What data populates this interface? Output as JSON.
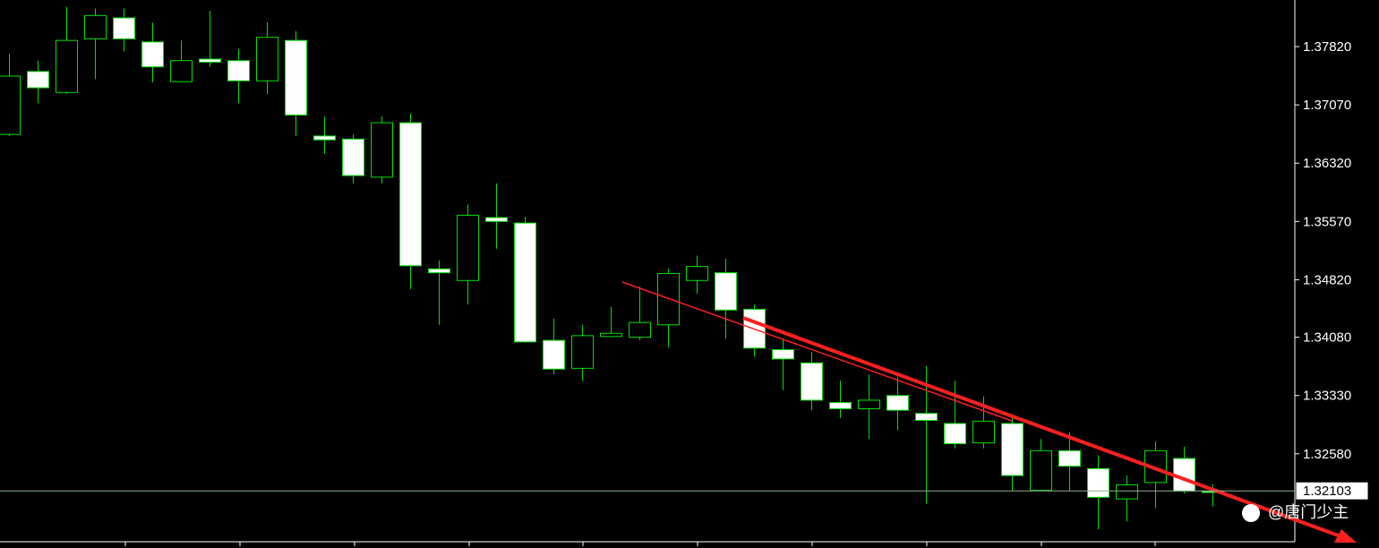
{
  "chart_data": {
    "type": "candlestick",
    "open": [
      1.3669,
      1.375,
      1.3723,
      1.3792,
      1.3819,
      1.3788,
      1.3737,
      1.3766,
      1.3764,
      1.3738,
      1.379,
      1.3667,
      1.3663,
      1.3614,
      1.3684,
      1.3496,
      1.3481,
      1.3562,
      1.3555,
      1.3404,
      1.3368,
      1.3409,
      1.3408,
      1.3424,
      1.3481,
      1.3491,
      1.3444,
      1.3392,
      1.3375,
      1.3324,
      1.3316,
      1.3333,
      1.331,
      1.3297,
      1.3272,
      1.3297,
      1.3211,
      1.3262,
      1.3239,
      1.32,
      1.3221,
      1.3252,
      1.321
    ],
    "high": [
      1.3773,
      1.3764,
      1.3833,
      1.3831,
      1.3831,
      1.3813,
      1.379,
      1.3828,
      1.3779,
      1.3813,
      1.3802,
      1.3692,
      1.3669,
      1.3692,
      1.3696,
      1.3507,
      1.3579,
      1.3606,
      1.3563,
      1.3432,
      1.3424,
      1.3447,
      1.3473,
      1.3496,
      1.3513,
      1.3509,
      1.345,
      1.3406,
      1.3389,
      1.3352,
      1.336,
      1.3357,
      1.3371,
      1.3352,
      1.3332,
      1.3309,
      1.3277,
      1.3286,
      1.3256,
      1.323,
      1.3274,
      1.3267,
      1.3219
    ],
    "low": [
      1.3667,
      1.3709,
      1.3721,
      1.374,
      1.3776,
      1.3736,
      1.3736,
      1.3756,
      1.3709,
      1.3721,
      1.3667,
      1.3644,
      1.3606,
      1.3606,
      1.347,
      1.3424,
      1.345,
      1.3522,
      1.3401,
      1.336,
      1.3352,
      1.3408,
      1.3404,
      1.3395,
      1.3464,
      1.3406,
      1.3383,
      1.334,
      1.3314,
      1.3304,
      1.3277,
      1.3288,
      1.3194,
      1.3265,
      1.3265,
      1.321,
      1.321,
      1.321,
      1.3161,
      1.3171,
      1.3188,
      1.3207,
      1.319
    ],
    "close": [
      1.3744,
      1.3729,
      1.379,
      1.3822,
      1.3792,
      1.3756,
      1.3764,
      1.3762,
      1.3738,
      1.3794,
      1.3694,
      1.3662,
      1.3616,
      1.3684,
      1.35,
      1.3491,
      1.3565,
      1.3557,
      1.3402,
      1.3367,
      1.341,
      1.3413,
      1.3427,
      1.349,
      1.3499,
      1.3443,
      1.3394,
      1.338,
      1.3327,
      1.3316,
      1.3327,
      1.3314,
      1.3301,
      1.3271,
      1.33,
      1.323,
      1.3262,
      1.3242,
      1.3202,
      1.3218,
      1.3262,
      1.321,
      1.3209
    ],
    "up_color": "#000000",
    "down_color": "#ffffff",
    "outline_color": "#00e000",
    "ylim": [
      1.3146,
      1.3842
    ],
    "yticks": [
      {
        "value": 1.3782,
        "label": "1.37820"
      },
      {
        "value": 1.3707,
        "label": "1.37070"
      },
      {
        "value": 1.3632,
        "label": "1.36320"
      },
      {
        "value": 1.3557,
        "label": "1.35570"
      },
      {
        "value": 1.3482,
        "label": "1.34820"
      },
      {
        "value": 1.3408,
        "label": "1.34080"
      },
      {
        "value": 1.3333,
        "label": "1.33330"
      },
      {
        "value": 1.3258,
        "label": "1.32580"
      }
    ],
    "current_price": 1.32103,
    "watermark": "@唐门少主"
  }
}
